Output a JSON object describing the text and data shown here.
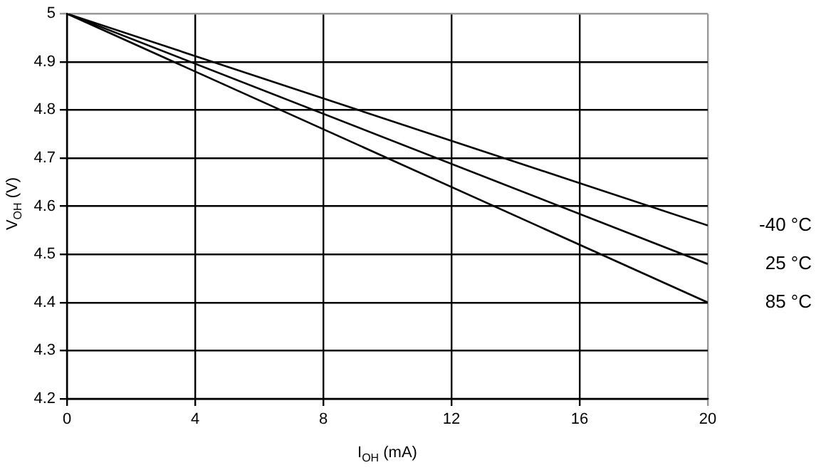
{
  "chart_data": {
    "type": "line",
    "xlabel": "I$_{OH}$ (mA)",
    "ylabel": "V$_{OH}$ (V)",
    "x": [
      0,
      20
    ],
    "series": [
      {
        "name": "-40 °C",
        "color": "#000000",
        "values": [
          5,
          4.56
        ]
      },
      {
        "name": "25 °C",
        "color": "#000000",
        "values": [
          5,
          4.48
        ]
      },
      {
        "name": "85 °C",
        "color": "#000000",
        "values": [
          5,
          4.4
        ]
      }
    ],
    "xlim": [
      0,
      20
    ],
    "xticks": [
      0,
      4,
      8,
      12,
      16,
      20
    ],
    "ylim": [
      4.2,
      5
    ],
    "yticks": [
      4.2,
      4.3,
      4.4,
      4.5,
      4.6,
      4.7,
      4.8,
      4.9,
      5
    ],
    "grid": true,
    "legend": false,
    "marker": "none",
    "line_style": "solid"
  }
}
